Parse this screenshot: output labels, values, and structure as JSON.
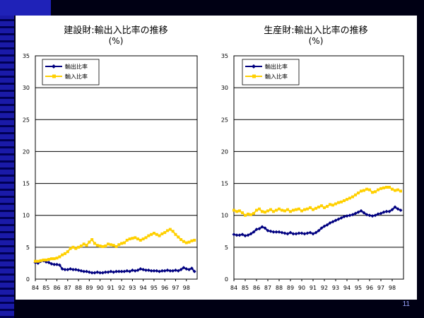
{
  "page_number": "11",
  "chart_data": [
    {
      "type": "line",
      "title": "建設財:輸出入比率の推移",
      "subtitle": "(%)",
      "ylim": [
        0,
        35
      ],
      "yticks": [
        0,
        5,
        10,
        15,
        20,
        25,
        30,
        35
      ],
      "xticks": [
        "84",
        "85",
        "86",
        "87",
        "88",
        "89",
        "90",
        "91",
        "92",
        "93",
        "94",
        "95",
        "96",
        "97",
        "98"
      ],
      "x_range": [
        84,
        99
      ],
      "grid": true,
      "legend_position": "top-left",
      "series": [
        {
          "name": "輸出比率",
          "color": "#000080",
          "marker": "diamond",
          "x": [
            84,
            84.25,
            84.5,
            84.75,
            85,
            85.25,
            85.5,
            85.75,
            86,
            86.25,
            86.5,
            86.75,
            87,
            87.25,
            87.5,
            87.75,
            88,
            88.25,
            88.5,
            88.75,
            89,
            89.25,
            89.5,
            89.75,
            90,
            90.25,
            90.5,
            90.75,
            91,
            91.25,
            91.5,
            91.75,
            92,
            92.25,
            92.5,
            92.75,
            93,
            93.25,
            93.5,
            93.75,
            94,
            94.25,
            94.5,
            94.75,
            95,
            95.25,
            95.5,
            95.75,
            96,
            96.25,
            96.5,
            96.75,
            97,
            97.25,
            97.5,
            97.75,
            98,
            98.25,
            98.5,
            98.75
          ],
          "y": [
            2.6,
            2.5,
            2.8,
            2.9,
            2.7,
            2.6,
            2.4,
            2.3,
            2.3,
            2.2,
            1.6,
            1.5,
            1.5,
            1.6,
            1.5,
            1.5,
            1.4,
            1.3,
            1.2,
            1.2,
            1.1,
            1.0,
            1.0,
            1.1,
            1.0,
            1.0,
            1.1,
            1.1,
            1.2,
            1.1,
            1.2,
            1.2,
            1.2,
            1.2,
            1.3,
            1.2,
            1.4,
            1.3,
            1.4,
            1.6,
            1.5,
            1.4,
            1.4,
            1.3,
            1.3,
            1.3,
            1.2,
            1.3,
            1.3,
            1.4,
            1.3,
            1.3,
            1.4,
            1.3,
            1.5,
            1.8,
            1.6,
            1.5,
            1.7,
            1.2
          ]
        },
        {
          "name": "輸入比率",
          "color": "#ffd000",
          "marker": "square",
          "x": [
            84,
            84.25,
            84.5,
            84.75,
            85,
            85.25,
            85.5,
            85.75,
            86,
            86.25,
            86.5,
            86.75,
            87,
            87.25,
            87.5,
            87.75,
            88,
            88.25,
            88.5,
            88.75,
            89,
            89.25,
            89.5,
            89.75,
            90,
            90.25,
            90.5,
            90.75,
            91,
            91.25,
            91.5,
            91.75,
            92,
            92.25,
            92.5,
            92.75,
            93,
            93.25,
            93.5,
            93.75,
            94,
            94.25,
            94.5,
            94.75,
            95,
            95.25,
            95.5,
            95.75,
            96,
            96.25,
            96.5,
            96.75,
            97,
            97.25,
            97.5,
            97.75,
            98,
            98.25,
            98.5,
            98.75
          ],
          "y": [
            2.8,
            2.8,
            2.9,
            3.0,
            3.0,
            3.1,
            3.2,
            3.2,
            3.3,
            3.5,
            3.8,
            4.0,
            4.3,
            4.8,
            5.0,
            4.8,
            5.0,
            5.2,
            5.5,
            5.3,
            5.8,
            6.2,
            5.6,
            5.3,
            5.2,
            5.1,
            5.2,
            5.5,
            5.4,
            5.3,
            5.1,
            5.4,
            5.6,
            5.7,
            6.1,
            6.3,
            6.4,
            6.5,
            6.3,
            6.1,
            6.3,
            6.5,
            6.8,
            7.0,
            7.2,
            7.0,
            6.8,
            7.1,
            7.3,
            7.6,
            7.8,
            7.5,
            7.0,
            6.6,
            6.2,
            5.9,
            5.7,
            5.8,
            6.0,
            6.1
          ]
        }
      ]
    },
    {
      "type": "line",
      "title": "生産財:輸出入比率の推移",
      "subtitle": "(%)",
      "ylim": [
        0,
        35
      ],
      "yticks": [
        0,
        5,
        10,
        15,
        20,
        25,
        30,
        35
      ],
      "xticks": [
        "84",
        "85",
        "86",
        "87",
        "88",
        "89",
        "90",
        "91",
        "92",
        "93",
        "94",
        "95",
        "96",
        "97",
        "98"
      ],
      "x_range": [
        84,
        99
      ],
      "grid": true,
      "legend_position": "top-left",
      "series": [
        {
          "name": "輸出比率",
          "color": "#000080",
          "marker": "diamond",
          "x": [
            84,
            84.25,
            84.5,
            84.75,
            85,
            85.25,
            85.5,
            85.75,
            86,
            86.25,
            86.5,
            86.75,
            87,
            87.25,
            87.5,
            87.75,
            88,
            88.25,
            88.5,
            88.75,
            89,
            89.25,
            89.5,
            89.75,
            90,
            90.25,
            90.5,
            90.75,
            91,
            91.25,
            91.5,
            91.75,
            92,
            92.25,
            92.5,
            92.75,
            93,
            93.25,
            93.5,
            93.75,
            94,
            94.25,
            94.5,
            94.75,
            95,
            95.25,
            95.5,
            95.75,
            96,
            96.25,
            96.5,
            96.75,
            97,
            97.25,
            97.5,
            97.75,
            98,
            98.25,
            98.5,
            98.75
          ],
          "y": [
            7.0,
            6.9,
            6.9,
            7.0,
            6.8,
            6.9,
            7.1,
            7.4,
            7.8,
            7.9,
            8.2,
            8.0,
            7.6,
            7.5,
            7.4,
            7.4,
            7.4,
            7.3,
            7.2,
            7.1,
            7.3,
            7.1,
            7.1,
            7.2,
            7.2,
            7.1,
            7.2,
            7.3,
            7.1,
            7.3,
            7.6,
            8.0,
            8.3,
            8.5,
            8.8,
            9.0,
            9.2,
            9.4,
            9.6,
            9.8,
            9.9,
            10.0,
            10.1,
            10.3,
            10.5,
            10.7,
            10.4,
            10.1,
            10.0,
            9.9,
            10.0,
            10.2,
            10.3,
            10.5,
            10.6,
            10.6,
            10.9,
            11.3,
            11.0,
            10.8
          ]
        },
        {
          "name": "輸入比率",
          "color": "#ffd000",
          "marker": "square",
          "x": [
            84,
            84.25,
            84.5,
            84.75,
            85,
            85.25,
            85.5,
            85.75,
            86,
            86.25,
            86.5,
            86.75,
            87,
            87.25,
            87.5,
            87.75,
            88,
            88.25,
            88.5,
            88.75,
            89,
            89.25,
            89.5,
            89.75,
            90,
            90.25,
            90.5,
            90.75,
            91,
            91.25,
            91.5,
            91.75,
            92,
            92.25,
            92.5,
            92.75,
            93,
            93.25,
            93.5,
            93.75,
            94,
            94.25,
            94.5,
            94.75,
            95,
            95.25,
            95.5,
            95.75,
            96,
            96.25,
            96.5,
            96.75,
            97,
            97.25,
            97.5,
            97.75,
            98,
            98.25,
            98.5,
            98.75
          ],
          "y": [
            10.8,
            10.6,
            10.7,
            10.4,
            10.0,
            10.2,
            10.1,
            10.3,
            10.8,
            11.0,
            10.6,
            10.5,
            10.7,
            10.9,
            10.6,
            10.8,
            11.0,
            10.8,
            10.7,
            10.9,
            10.6,
            10.8,
            10.9,
            11.0,
            10.7,
            10.9,
            11.0,
            11.2,
            10.9,
            11.1,
            11.3,
            11.5,
            11.2,
            11.4,
            11.7,
            11.6,
            11.8,
            12.0,
            12.1,
            12.3,
            12.5,
            12.7,
            12.9,
            13.2,
            13.5,
            13.8,
            13.9,
            14.1,
            14.0,
            13.6,
            13.7,
            14.0,
            14.2,
            14.3,
            14.4,
            14.4,
            14.1,
            13.9,
            14.0,
            13.8
          ]
        }
      ]
    }
  ]
}
